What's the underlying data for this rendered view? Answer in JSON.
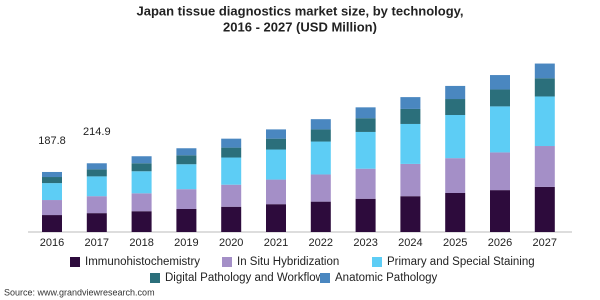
{
  "chart_data": {
    "type": "stacked_bar",
    "title": "Japan tissue diagnostics market size, by technology,",
    "subtitle": "2016 - 2027 (USD Million)",
    "source": "Source: www.grandviewresearch.com",
    "categories": [
      "2016",
      "2017",
      "2018",
      "2019",
      "2020",
      "2021",
      "2022",
      "2023",
      "2024",
      "2025",
      "2026",
      "2027"
    ],
    "series": [
      {
        "name": "Immunohistochemistry",
        "color": "#2d0b3c",
        "values": [
          53,
          59,
          65,
          72,
          79,
          87,
          95,
          104,
          112,
          122,
          131,
          141
        ]
      },
      {
        "name": "In Situ Hybridization",
        "color": "#a48fc7",
        "values": [
          47,
          53,
          56,
          62,
          69,
          77,
          85,
          94,
          101,
          109,
          118,
          128
        ]
      },
      {
        "name": "Primary and Special Staining",
        "color": "#5dcdf5",
        "values": [
          53,
          62,
          69,
          78,
          85,
          94,
          103,
          115,
          125,
          135,
          144,
          155
        ]
      },
      {
        "name": "Digital Pathology and Workflow",
        "color": "#2b6f7b",
        "values": [
          19,
          22,
          25,
          28,
          31,
          34,
          38,
          43,
          47,
          50,
          53,
          57
        ]
      },
      {
        "name": "Anatomic Pathology",
        "color": "#4a87c0",
        "values": [
          15.8,
          19,
          22,
          22,
          28,
          29,
          32,
          34,
          37,
          41,
          45,
          46
        ]
      }
    ],
    "totals": [
      187.8,
      214.9,
      null,
      null,
      null,
      null,
      null,
      null,
      null,
      null,
      null,
      null
    ],
    "ylim": [
      0,
      560
    ]
  }
}
